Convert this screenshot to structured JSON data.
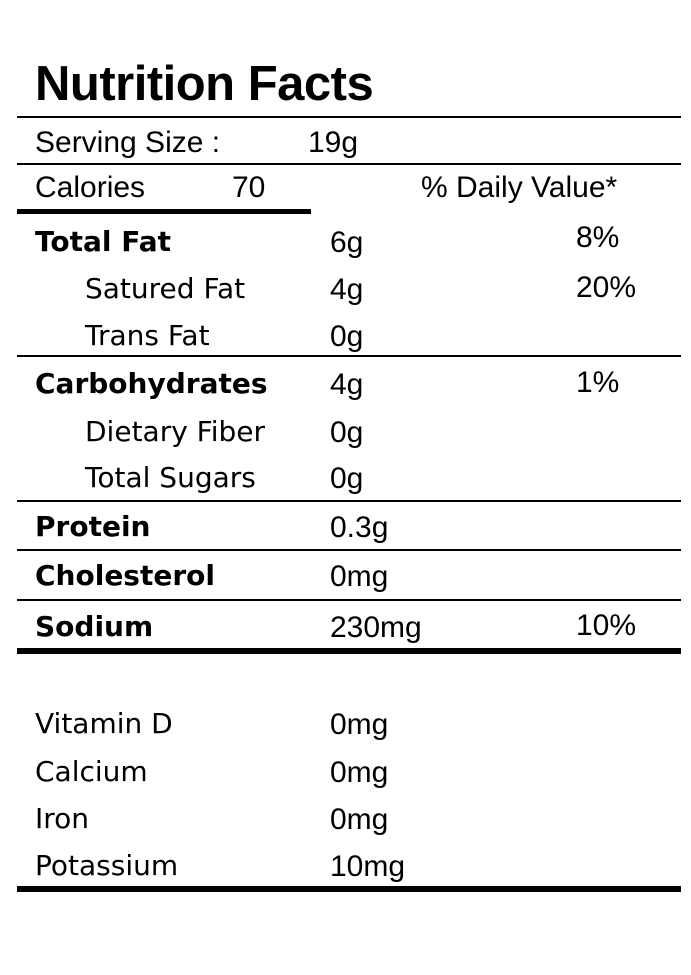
{
  "title": "Nutrition Facts",
  "serving": {
    "label": "Serving Size :",
    "value": "19g"
  },
  "calories": {
    "label": "Calories",
    "value": "70"
  },
  "daily_value_header": "% Daily Value*",
  "nutrients": [
    {
      "name": "Total Fat",
      "amount": "6g",
      "dv": "8%"
    },
    {
      "name": "Satured Fat",
      "amount": "4g",
      "dv": "20%"
    },
    {
      "name": "Trans Fat",
      "amount": "0g",
      "dv": ""
    },
    {
      "name": "Carbohydrates",
      "amount": "4g",
      "dv": "1%"
    },
    {
      "name": "Dietary Fiber",
      "amount": "0g",
      "dv": ""
    },
    {
      "name": "Total Sugars",
      "amount": "0g",
      "dv": ""
    },
    {
      "name": "Protein",
      "amount": "0.3g",
      "dv": ""
    },
    {
      "name": "Cholesterol",
      "amount": "0mg",
      "dv": ""
    },
    {
      "name": "Sodium",
      "amount": "230mg",
      "dv": "10%"
    }
  ],
  "vitamins": [
    {
      "name": "Vitamin D",
      "amount": "0mg"
    },
    {
      "name": "Calcium",
      "amount": "0mg"
    },
    {
      "name": "Iron",
      "amount": "0mg"
    },
    {
      "name": "Potassium",
      "amount": "10mg"
    }
  ]
}
